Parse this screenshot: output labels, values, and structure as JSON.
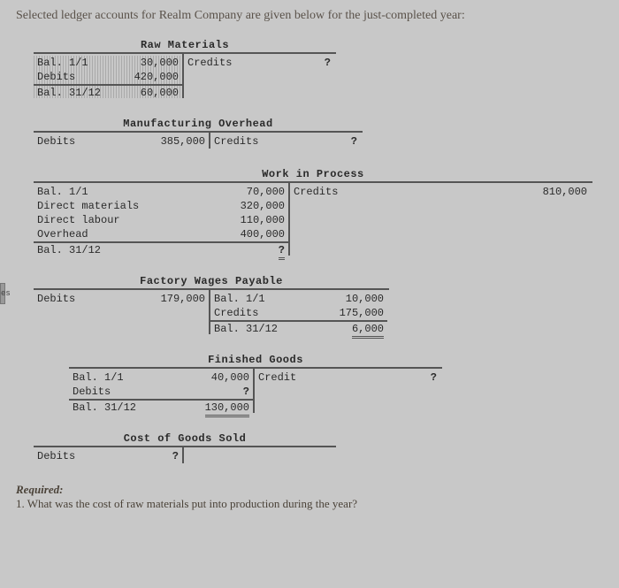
{
  "heading": "Selected ledger accounts for Realm Company are given below for the just-completed year:",
  "raw_materials": {
    "title": "Raw Materials",
    "left": [
      {
        "lbl": "Bal. 1/1",
        "val": "30,000"
      },
      {
        "lbl": "Debits",
        "val": "420,000"
      },
      {
        "lbl": "Bal. 31/12",
        "val": "60,000"
      }
    ],
    "right": [
      {
        "lbl": "Credits",
        "val": "?"
      }
    ],
    "left_w": 170,
    "right_w": 170
  },
  "mfg_overhead": {
    "title": "Manufacturing Overhead",
    "left": [
      {
        "lbl": "Debits",
        "val": "385,000"
      }
    ],
    "right": [
      {
        "lbl": "Credits",
        "val": "?"
      }
    ],
    "left_w": 200,
    "right_w": 170
  },
  "wip": {
    "title": "Work in Process",
    "left": [
      {
        "lbl": "Bal. 1/1",
        "val": "70,000"
      },
      {
        "lbl": "Direct materials",
        "val": "320,000"
      },
      {
        "lbl": "Direct labour",
        "val": "110,000"
      },
      {
        "lbl": "Overhead",
        "val": "400,000"
      },
      {
        "lbl": "Bal. 31/12",
        "val": "?"
      }
    ],
    "right": [
      {
        "lbl": "Credits",
        "val": "810,000"
      }
    ],
    "left_w": 290,
    "right_w": 340
  },
  "factory_wages": {
    "title": "Factory Wages Payable",
    "left": [
      {
        "lbl": "Debits",
        "val": "179,000"
      }
    ],
    "right": [
      {
        "lbl": "Bal. 1/1",
        "val": "10,000"
      },
      {
        "lbl": "Credits",
        "val": "175,000"
      },
      {
        "lbl": "Bal. 31/12",
        "val": "6,000"
      }
    ],
    "left_w": 200,
    "right_w": 200
  },
  "finished_goods": {
    "title": "Finished Goods",
    "left": [
      {
        "lbl": "Bal. 1/1",
        "val": "40,000"
      },
      {
        "lbl": "Debits",
        "val": "?"
      },
      {
        "lbl": "Bal. 31/12",
        "val": "130,000"
      }
    ],
    "right": [
      {
        "lbl": "Credit",
        "val": "?"
      }
    ],
    "left_w": 210,
    "right_w": 210
  },
  "cogs": {
    "title": "Cost of Goods Sold",
    "left": [
      {
        "lbl": "Debits",
        "val": "?"
      }
    ],
    "right": [],
    "left_w": 170,
    "right_w": 170
  },
  "required_label": "Required:",
  "required_q1": "1. What was the cost of raw materials put into production during the year?",
  "edge_tab": "es",
  "account_indents": {
    "raw_materials": 20,
    "mfg_overhead": 20,
    "wip": 20,
    "factory_wages": 20,
    "finished_goods": 60,
    "cogs": 20
  },
  "colors": {
    "page_bg": "#c8c8c8",
    "line": "#555555",
    "text": "#2a2a2a",
    "heading": "#5a524a"
  }
}
